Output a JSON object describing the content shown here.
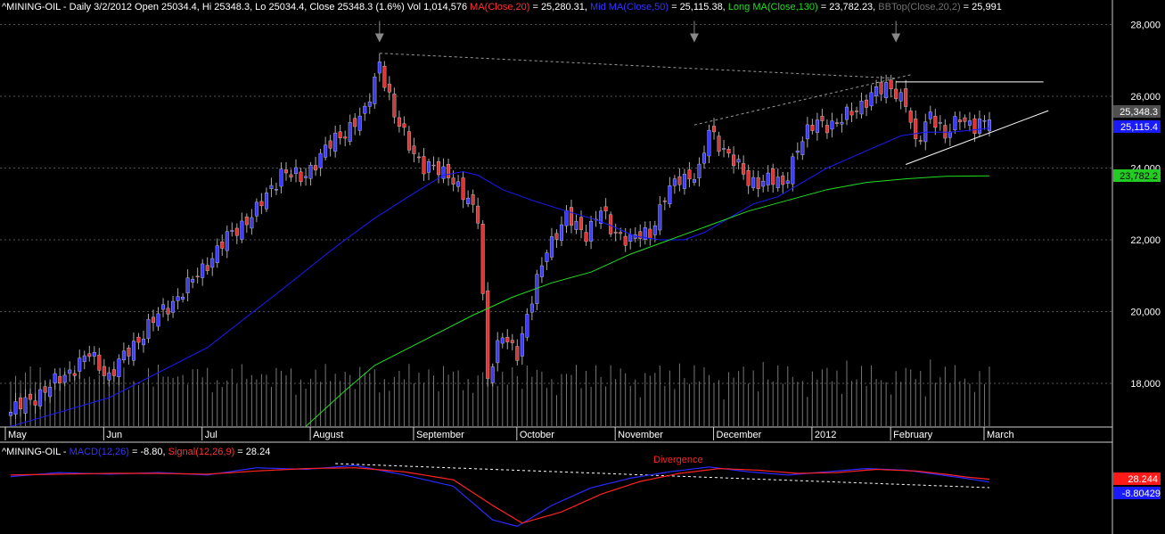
{
  "header": {
    "symbol_line": "^MINING-OIL - Daily 3/2/2012 Open 25034.4, Hi 25348.3, Lo 25034.4, Close 25348.3 (1.6%) Vol 1,014,576",
    "ma20_label": "MA(Close,20)",
    "ma20_value": " = 25,280.31,",
    "mid_label": "Mid MA(Close,50)",
    "mid_value": " = 25,115.38,",
    "long_label": "Long MA(Close,130)",
    "long_value": " = 23,782.23,",
    "bb_label": "BBTop(Close,20,2)",
    "bb_value": " = 25,991"
  },
  "macd_header": {
    "prefix": "^MINING-OIL - ",
    "macd_label": "MACD(12,26)",
    "macd_value": " = -8.80, ",
    "signal_label": "Signal(12,26,9)",
    "signal_value": " = 28.24"
  },
  "annotations": {
    "divergence": "Divergence"
  },
  "price_tags": {
    "close": "25,348.3",
    "mid_ma": "25,115.4",
    "long_ma": "23,782.2"
  },
  "macd_tags": {
    "signal": "28.244",
    "macd": "-8.80429"
  },
  "colors": {
    "background": "#000000",
    "up_candle": "#3b3bff",
    "down_candle": "#e03333",
    "mid_ma": "#1a1aff",
    "long_ma": "#22dd22",
    "ma20_text": "#ff3333",
    "mid_text": "#3333ff",
    "long_text": "#22dd22",
    "bb_text": "#707070",
    "volume": "#777777",
    "macd": "#2a2aff",
    "signal": "#ff2222"
  },
  "chart_data": [
    {
      "type": "candlestick",
      "title": "^MINING-OIL - Daily 3/2/2012",
      "x_months": [
        "May",
        "Jun",
        "Jul",
        "August",
        "September",
        "October",
        "November",
        "December",
        "2012",
        "February",
        "March"
      ],
      "y_ticks": [
        "18,000",
        "20,000",
        "22,000",
        "24,000",
        "26,000",
        "28,000"
      ],
      "ylim": [
        16800,
        28600
      ],
      "last_bar": {
        "open": 25034.4,
        "high": 25348.3,
        "low": 25034.4,
        "close": 25348.3,
        "change_pct": 1.6,
        "volume": 1014576
      },
      "anchors_close": [
        [
          0,
          17200
        ],
        [
          8,
          17900
        ],
        [
          16,
          18800
        ],
        [
          20,
          18200
        ],
        [
          28,
          19600
        ],
        [
          36,
          20700
        ],
        [
          45,
          22200
        ],
        [
          50,
          22800
        ],
        [
          55,
          23900
        ],
        [
          59,
          23700
        ],
        [
          66,
          24800
        ],
        [
          72,
          25500
        ],
        [
          75,
          27000
        ],
        [
          78,
          25400
        ],
        [
          84,
          24000
        ],
        [
          89,
          23900
        ],
        [
          92,
          23200
        ],
        [
          95,
          22700
        ],
        [
          97,
          18200
        ],
        [
          100,
          19300
        ],
        [
          103,
          18900
        ],
        [
          106,
          20300
        ],
        [
          109,
          21800
        ],
        [
          113,
          22600
        ],
        [
          117,
          22200
        ],
        [
          120,
          22800
        ],
        [
          122,
          22300
        ],
        [
          126,
          22000
        ],
        [
          130,
          22200
        ],
        [
          133,
          23200
        ],
        [
          136,
          23700
        ],
        [
          140,
          23900
        ],
        [
          142,
          25000
        ],
        [
          146,
          24400
        ],
        [
          150,
          23600
        ],
        [
          154,
          23700
        ],
        [
          157,
          23500
        ],
        [
          160,
          24600
        ],
        [
          164,
          25300
        ],
        [
          168,
          25200
        ],
        [
          172,
          25700
        ],
        [
          176,
          26100
        ],
        [
          179,
          26300
        ],
        [
          182,
          25800
        ],
        [
          184,
          24600
        ],
        [
          187,
          25600
        ],
        [
          190,
          24800
        ],
        [
          193,
          25500
        ],
        [
          196,
          25100
        ],
        [
          199,
          25300
        ]
      ],
      "series": [
        {
          "name": "Mid MA(Close,50)",
          "last": 25115.38,
          "points": [
            [
              0,
              16800
            ],
            [
              20,
              17600
            ],
            [
              40,
              19000
            ],
            [
              55,
              20600
            ],
            [
              66,
              21800
            ],
            [
              74,
              22600
            ],
            [
              82,
              23300
            ],
            [
              88,
              23800
            ],
            [
              92,
              23900
            ],
            [
              95,
              23800
            ],
            [
              100,
              23400
            ],
            [
              106,
              23100
            ],
            [
              113,
              22800
            ],
            [
              118,
              22600
            ],
            [
              122,
              22400
            ],
            [
              127,
              22100
            ],
            [
              132,
              22000
            ],
            [
              137,
              22000
            ],
            [
              141,
              22200
            ],
            [
              146,
              22600
            ],
            [
              151,
              23000
            ],
            [
              156,
              23200
            ],
            [
              161,
              23600
            ],
            [
              166,
              24000
            ],
            [
              171,
              24300
            ],
            [
              176,
              24600
            ],
            [
              181,
              24900
            ],
            [
              186,
              25000
            ],
            [
              191,
              25000
            ],
            [
              195,
              25050
            ],
            [
              199,
              25115
            ]
          ]
        },
        {
          "name": "Long MA(Close,130)",
          "last": 23782.23,
          "points": [
            [
              60,
              16800
            ],
            [
              68,
              17800
            ],
            [
              74,
              18500
            ],
            [
              84,
              19200
            ],
            [
              94,
              19900
            ],
            [
              102,
              20400
            ],
            [
              110,
              20800
            ],
            [
              118,
              21100
            ],
            [
              126,
              21600
            ],
            [
              134,
              22000
            ],
            [
              142,
              22400
            ],
            [
              150,
              22800
            ],
            [
              158,
              23100
            ],
            [
              166,
              23400
            ],
            [
              174,
              23600
            ],
            [
              182,
              23700
            ],
            [
              190,
              23770
            ],
            [
              199,
              23782
            ]
          ]
        }
      ],
      "volume": {
        "last": 1014576
      },
      "annotations": {
        "arrows_at_bars": [
          75,
          139,
          180
        ],
        "trendlines": "resistance and rising support lines forming a triangle"
      }
    },
    {
      "type": "line",
      "title": "^MINING-OIL - MACD(12,26) = -8.80, Signal(12,26,9) = 28.24",
      "series": [
        {
          "name": "MACD(12,26)",
          "last": -8.80429,
          "points": [
            [
              0,
              60
            ],
            [
              10,
              110
            ],
            [
              20,
              90
            ],
            [
              30,
              110
            ],
            [
              40,
              80
            ],
            [
              50,
              170
            ],
            [
              60,
              150
            ],
            [
              70,
              200
            ],
            [
              80,
              80
            ],
            [
              90,
              -60
            ],
            [
              98,
              -480
            ],
            [
              103,
              -560
            ],
            [
              110,
              -300
            ],
            [
              118,
              -80
            ],
            [
              126,
              40
            ],
            [
              134,
              120
            ],
            [
              142,
              180
            ],
            [
              150,
              120
            ],
            [
              158,
              80
            ],
            [
              166,
              120
            ],
            [
              174,
              160
            ],
            [
              182,
              140
            ],
            [
              188,
              90
            ],
            [
              194,
              40
            ],
            [
              199,
              -9
            ]
          ]
        },
        {
          "name": "Signal(12,26,9)",
          "last": 28.244,
          "points": [
            [
              0,
              80
            ],
            [
              10,
              90
            ],
            [
              20,
              100
            ],
            [
              30,
              100
            ],
            [
              40,
              90
            ],
            [
              50,
              130
            ],
            [
              60,
              160
            ],
            [
              70,
              170
            ],
            [
              80,
              120
            ],
            [
              90,
              20
            ],
            [
              98,
              -300
            ],
            [
              104,
              -520
            ],
            [
              112,
              -380
            ],
            [
              120,
              -160
            ],
            [
              128,
              0
            ],
            [
              136,
              100
            ],
            [
              144,
              160
            ],
            [
              152,
              140
            ],
            [
              160,
              100
            ],
            [
              168,
              110
            ],
            [
              176,
              150
            ],
            [
              184,
              130
            ],
            [
              190,
              90
            ],
            [
              195,
              50
            ],
            [
              199,
              28
            ]
          ]
        }
      ],
      "annotations": {
        "label": "Divergence"
      }
    }
  ]
}
